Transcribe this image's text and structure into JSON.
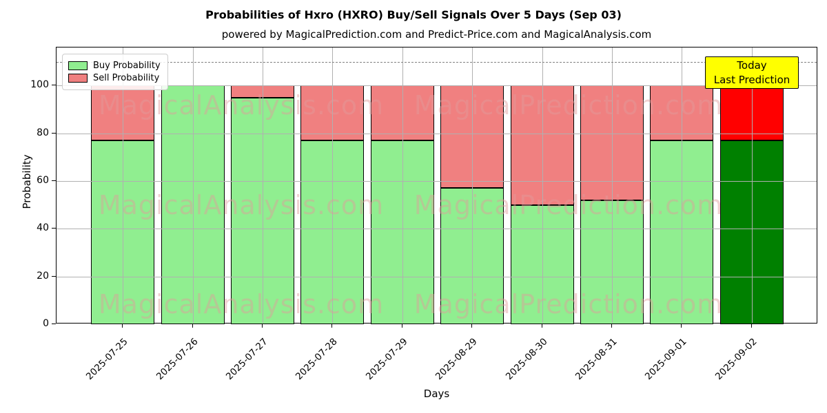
{
  "header": {
    "title": "Probabilities of Hxro (HXRO) Buy/Sell Signals Over 5 Days (Sep 03)",
    "subtitle": "powered by MagicalPrediction.com and Predict-Price.com and MagicalAnalysis.com"
  },
  "chart_data": {
    "type": "bar",
    "stacked": true,
    "title": "Probabilities of Hxro (HXRO) Buy/Sell Signals Over 5 Days (Sep 03)",
    "xlabel": "Days",
    "ylabel": "Probability",
    "categories": [
      "2025-07-25",
      "2025-07-26",
      "2025-07-27",
      "2025-07-28",
      "2025-07-29",
      "2025-08-29",
      "2025-08-30",
      "2025-08-31",
      "2025-09-01",
      "2025-09-02"
    ],
    "series": [
      {
        "name": "Buy Probability",
        "color": "#90EE90",
        "values": [
          77,
          100,
          95,
          77,
          77,
          57,
          50,
          52,
          77,
          77
        ]
      },
      {
        "name": "Sell Probability",
        "color": "#F08080",
        "values": [
          23,
          0,
          5,
          23,
          23,
          43,
          50,
          48,
          23,
          23
        ]
      }
    ],
    "today_bar": {
      "index": 9,
      "buy_color": "#008000",
      "sell_color": "#FF0000"
    },
    "yticks": [
      0,
      20,
      40,
      60,
      80,
      100
    ],
    "ylim": [
      0,
      116
    ],
    "dashed_line_y": 110,
    "grid": true,
    "legend_position": "upper-left"
  },
  "legend": {
    "items": [
      {
        "label": "Buy Probability",
        "color": "#90EE90"
      },
      {
        "label": "Sell Probability",
        "color": "#F08080"
      }
    ]
  },
  "annotation": {
    "line1": "Today",
    "line2": "Last Prediction",
    "bg_color": "#FFFF00"
  },
  "watermarks": {
    "left_text": "MagicalAnalysis.com",
    "right_text": "MagicalPrediction.com"
  },
  "colors": {
    "buy": "#90EE90",
    "sell": "#F08080",
    "today_buy": "#008000",
    "today_sell": "#FF0000",
    "grid": "#b0b0b0",
    "dashed": "#7f7f7f",
    "annotation_bg": "#FFFF00"
  }
}
